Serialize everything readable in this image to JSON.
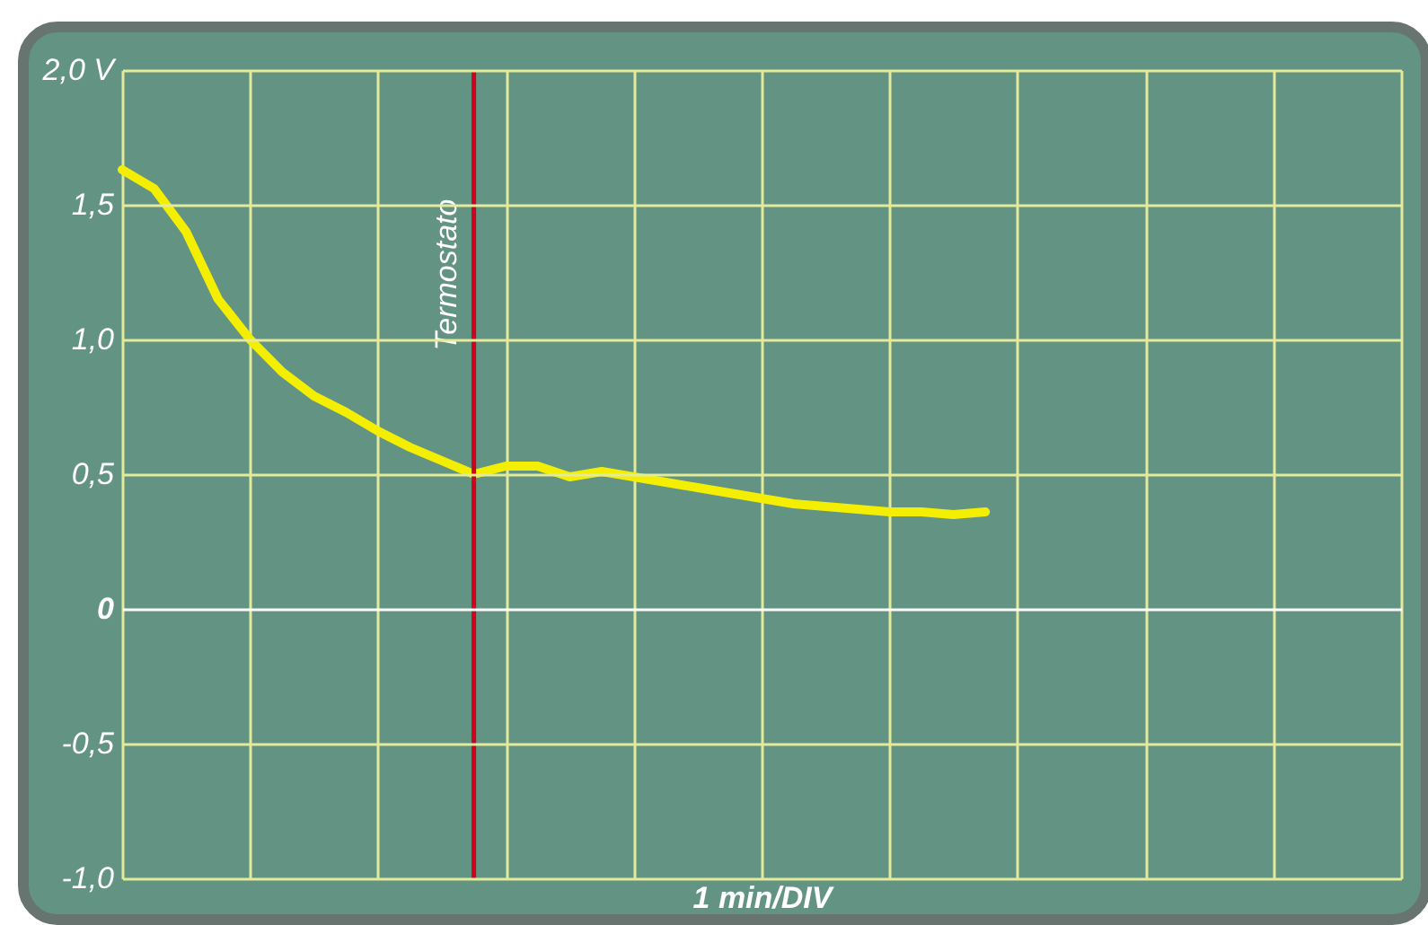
{
  "chart_data": {
    "type": "line",
    "xlabel": "1 min/DIV",
    "categories": [
      null,
      null,
      null,
      null,
      null,
      null,
      null,
      null,
      null,
      null,
      null,
      null,
      null,
      null,
      null,
      null,
      null,
      null,
      null,
      null,
      null,
      null,
      null,
      null,
      null,
      null,
      null,
      null,
      null,
      null,
      null,
      null,
      null,
      null,
      null,
      null,
      null,
      null,
      null,
      null,
      null
    ],
    "series": [
      {
        "color": "#f4ee00",
        "values": [
          1.63,
          1.56,
          1.4,
          1.15,
          1.0,
          0.88,
          0.79,
          0.73,
          0.66,
          0.6,
          0.55,
          0.5,
          0.53,
          0.53,
          0.49,
          0.51,
          0.49,
          0.47,
          0.45,
          0.43,
          0.41,
          0.39,
          0.38,
          0.37,
          0.36,
          0.36,
          0.35,
          0.36,
          null,
          null,
          null,
          null,
          null,
          null,
          null,
          null,
          null,
          null,
          null,
          null,
          null
        ]
      }
    ],
    "ylim": [
      -1,
      2
    ],
    "yticks": [
      {
        "value": 2,
        "label": "2,0 V"
      },
      {
        "value": 1.5,
        "label": "1,5"
      },
      {
        "value": 1,
        "label": "1,0"
      },
      {
        "value": 0.5,
        "label": "0,5"
      },
      {
        "value": 0,
        "label": "0"
      },
      {
        "value": -0.5,
        "label": "-0,5"
      },
      {
        "value": -1,
        "label": "-1,0"
      }
    ],
    "annotations": [
      "Termostato"
    ],
    "grid": true,
    "tick_labels": "y",
    "marker": "none",
    "line_style": "solid"
  }
}
